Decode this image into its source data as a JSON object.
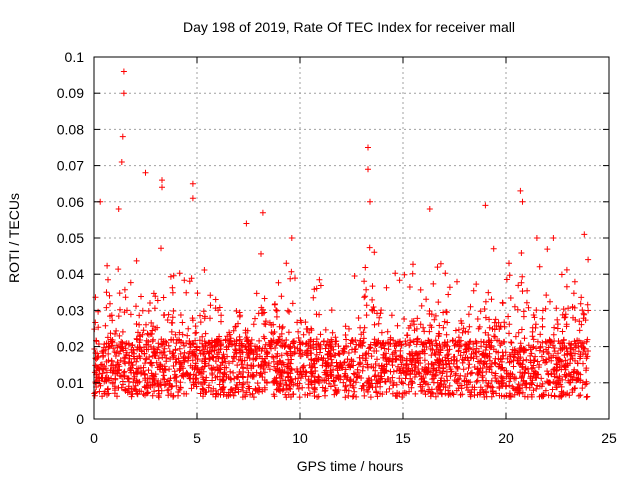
{
  "chart_data": {
    "type": "scatter",
    "title": "Day 198 of 2019, Rate Of TEC Index for receiver mall",
    "xlabel": "GPS time / hours",
    "ylabel": "ROTI / TECUs",
    "xlim": [
      0,
      25
    ],
    "ylim": [
      0,
      0.1
    ],
    "xticks": [
      "0",
      "5",
      "10",
      "15",
      "20",
      "25"
    ],
    "yticks": [
      "0",
      "0.01",
      "0.02",
      "0.03",
      "0.04",
      "0.05",
      "0.06",
      "0.07",
      "0.08",
      "0.09",
      "0.1"
    ],
    "grid": true,
    "marker": "+",
    "color": "#ff0000",
    "x_data_range": [
      0,
      24
    ],
    "profile": {
      "x_hours": [
        0,
        0.5,
        1,
        1.5,
        2,
        2.5,
        3,
        3.5,
        4,
        4.5,
        5,
        5.5,
        6,
        6.5,
        7,
        7.5,
        8,
        8.5,
        9,
        9.5,
        10,
        10.5,
        11,
        11.5,
        12,
        12.5,
        13,
        13.5,
        14,
        14.5,
        15,
        15.5,
        16,
        16.5,
        17,
        17.5,
        18,
        18.5,
        19,
        19.5,
        20,
        20.5,
        21,
        21.5,
        22,
        22.5,
        23,
        23.5,
        24
      ],
      "upper_envelope": [
        0.046,
        0.05,
        0.045,
        0.057,
        0.045,
        0.043,
        0.05,
        0.045,
        0.04,
        0.048,
        0.046,
        0.043,
        0.033,
        0.03,
        0.03,
        0.04,
        0.048,
        0.05,
        0.042,
        0.05,
        0.04,
        0.035,
        0.042,
        0.03,
        0.035,
        0.04,
        0.048,
        0.05,
        0.043,
        0.041,
        0.045,
        0.043,
        0.043,
        0.045,
        0.043,
        0.04,
        0.038,
        0.04,
        0.045,
        0.048,
        0.045,
        0.045,
        0.052,
        0.045,
        0.048,
        0.046,
        0.045,
        0.045,
        0.05
      ]
    },
    "peaks": [
      {
        "x": 0.3,
        "y": 0.06
      },
      {
        "x": 1.2,
        "y": 0.058
      },
      {
        "x": 1.45,
        "y": 0.096
      },
      {
        "x": 1.45,
        "y": 0.09
      },
      {
        "x": 1.4,
        "y": 0.078
      },
      {
        "x": 1.35,
        "y": 0.071
      },
      {
        "x": 2.5,
        "y": 0.068
      },
      {
        "x": 3.3,
        "y": 0.066
      },
      {
        "x": 3.3,
        "y": 0.064
      },
      {
        "x": 4.8,
        "y": 0.065
      },
      {
        "x": 4.8,
        "y": 0.061
      },
      {
        "x": 7.4,
        "y": 0.054
      },
      {
        "x": 8.2,
        "y": 0.057
      },
      {
        "x": 9.6,
        "y": 0.05
      },
      {
        "x": 13.3,
        "y": 0.075
      },
      {
        "x": 13.3,
        "y": 0.069
      },
      {
        "x": 13.4,
        "y": 0.06
      },
      {
        "x": 16.3,
        "y": 0.058
      },
      {
        "x": 19,
        "y": 0.059
      },
      {
        "x": 20.7,
        "y": 0.063
      },
      {
        "x": 20.8,
        "y": 0.06
      },
      {
        "x": 21.5,
        "y": 0.05
      },
      {
        "x": 22.3,
        "y": 0.05
      },
      {
        "x": 23.8,
        "y": 0.051
      }
    ]
  }
}
